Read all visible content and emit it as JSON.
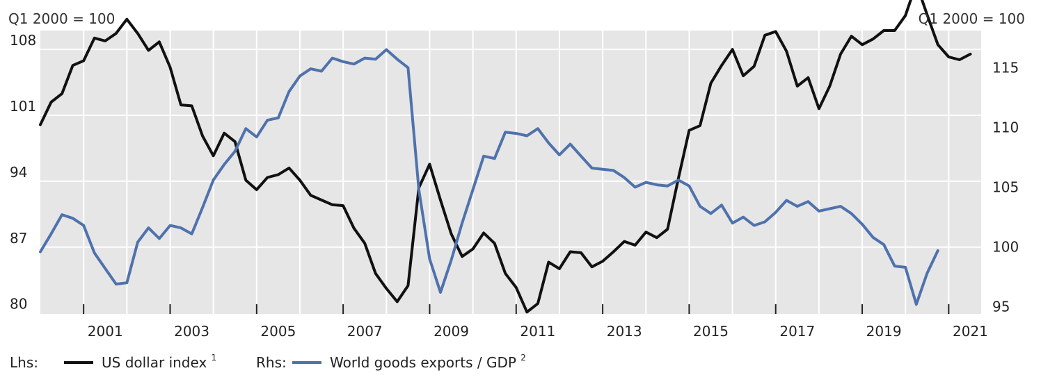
{
  "chart_data": {
    "type": "line",
    "left_unit": "Q1 2000 = 100",
    "right_unit": "Q1 2000 = 100",
    "x_tick_labels": [
      "2001",
      "2003",
      "2005",
      "2007",
      "2009",
      "2011",
      "2013",
      "2015",
      "2017",
      "2019",
      "2021"
    ],
    "xlim": [
      2000.0,
      2021.75
    ],
    "left_axis": {
      "ticks": [
        80,
        87,
        94,
        101,
        108
      ],
      "ylim": [
        79.9,
        110
      ]
    },
    "right_axis": {
      "ticks": [
        95,
        100,
        105,
        110,
        115
      ],
      "ylim": [
        94.4,
        118.1
      ]
    },
    "grid": true,
    "plot_background": "#e6e6e6",
    "legend": {
      "placement": "bottom",
      "items": [
        {
          "prefix": "Lhs:",
          "label": "US dollar index",
          "sup": "1",
          "color": "#111111"
        },
        {
          "prefix": "Rhs:",
          "label": "World goods exports / GDP",
          "sup": "2",
          "color": "#4f72ad"
        }
      ]
    },
    "series": [
      {
        "name": "US dollar index",
        "axis": "left",
        "color": "#111111",
        "x": [
          2000.0,
          2000.25,
          2000.5,
          2000.75,
          2001.0,
          2001.25,
          2001.5,
          2001.75,
          2002.0,
          2002.25,
          2002.5,
          2002.75,
          2003.0,
          2003.25,
          2003.5,
          2003.75,
          2004.0,
          2004.25,
          2004.5,
          2004.75,
          2005.0,
          2005.25,
          2005.5,
          2005.75,
          2006.0,
          2006.25,
          2006.5,
          2006.75,
          2007.0,
          2007.25,
          2007.5,
          2007.75,
          2008.0,
          2008.25,
          2008.5,
          2008.75,
          2009.0,
          2009.25,
          2009.5,
          2009.75,
          2010.0,
          2010.25,
          2010.5,
          2010.75,
          2011.0,
          2011.25,
          2011.5,
          2011.75,
          2012.0,
          2012.25,
          2012.5,
          2012.75,
          2013.0,
          2013.25,
          2013.5,
          2013.75,
          2014.0,
          2014.25,
          2014.5,
          2014.75,
          2015.0,
          2015.25,
          2015.5,
          2015.75,
          2016.0,
          2016.25,
          2016.5,
          2016.75,
          2017.0,
          2017.25,
          2017.5,
          2017.75,
          2018.0,
          2018.25,
          2018.5,
          2018.75,
          2019.0,
          2019.25,
          2019.5,
          2019.75,
          2020.0,
          2020.25,
          2020.5,
          2020.75,
          2021.0,
          2021.25,
          2021.5
        ],
        "y": [
          100,
          102.4,
          103.3,
          106.3,
          106.8,
          109.2,
          108.9,
          109.7,
          111.2,
          109.7,
          107.9,
          108.8,
          106.1,
          102.1,
          102.0,
          98.8,
          96.7,
          99.1,
          98.2,
          94.1,
          93.1,
          94.4,
          94.7,
          95.4,
          94.1,
          92.5,
          92.0,
          91.5,
          91.4,
          89.0,
          87.4,
          84.2,
          82.6,
          81.2,
          82.9,
          93.3,
          95.8,
          92.0,
          88.4,
          86.0,
          86.8,
          88.5,
          87.4,
          84.2,
          82.7,
          80.1,
          81.0,
          85.4,
          84.7,
          86.5,
          86.4,
          84.9,
          85.5,
          86.5,
          87.6,
          87.2,
          88.6,
          88.0,
          88.9,
          94.3,
          99.4,
          99.9,
          104.4,
          106.3,
          108.0,
          105.2,
          106.2,
          109.5,
          109.9,
          107.8,
          104.1,
          105.0,
          101.7,
          104.1,
          107.5,
          109.4,
          108.5,
          109.1,
          110.0,
          110.0,
          111.6,
          115.0,
          111.7,
          108.5,
          107.2,
          106.9,
          107.5
        ]
      },
      {
        "name": "World goods exports / GDP",
        "axis": "right",
        "color": "#4f72ad",
        "x": [
          2000.0,
          2000.25,
          2000.5,
          2000.75,
          2001.0,
          2001.25,
          2001.5,
          2001.75,
          2002.0,
          2002.25,
          2002.5,
          2002.75,
          2003.0,
          2003.25,
          2003.5,
          2003.75,
          2004.0,
          2004.25,
          2004.5,
          2004.75,
          2005.0,
          2005.25,
          2005.5,
          2005.75,
          2006.0,
          2006.25,
          2006.5,
          2006.75,
          2007.0,
          2007.25,
          2007.5,
          2007.75,
          2008.0,
          2008.25,
          2008.5,
          2008.75,
          2009.0,
          2009.25,
          2009.5,
          2009.75,
          2010.0,
          2010.25,
          2010.5,
          2010.75,
          2011.0,
          2011.25,
          2011.5,
          2011.75,
          2012.0,
          2012.25,
          2012.5,
          2012.75,
          2013.0,
          2013.25,
          2013.5,
          2013.75,
          2014.0,
          2014.25,
          2014.5,
          2014.75,
          2015.0,
          2015.25,
          2015.5,
          2015.75,
          2016.0,
          2016.25,
          2016.5,
          2016.75,
          2017.0,
          2017.25,
          2017.5,
          2017.75,
          2018.0,
          2018.25,
          2018.5,
          2018.75,
          2019.0,
          2019.25,
          2019.5,
          2019.75,
          2020.0,
          2020.25,
          2020.5,
          2020.75
        ],
        "y": [
          99.6,
          101.1,
          102.7,
          102.4,
          101.8,
          99.5,
          98.2,
          96.9,
          97.0,
          100.4,
          101.6,
          100.7,
          101.8,
          101.6,
          101.1,
          103.3,
          105.6,
          106.9,
          108.0,
          109.9,
          109.2,
          110.6,
          110.8,
          113.0,
          114.3,
          114.9,
          114.7,
          115.8,
          115.5,
          115.3,
          115.8,
          115.7,
          116.5,
          115.7,
          115.0,
          104.8,
          99.0,
          96.2,
          98.9,
          102.0,
          104.8,
          107.6,
          107.4,
          109.6,
          109.5,
          109.3,
          109.9,
          108.7,
          107.7,
          108.6,
          107.6,
          106.6,
          106.5,
          106.4,
          105.8,
          105.0,
          105.4,
          105.2,
          105.1,
          105.6,
          105.1,
          103.4,
          102.8,
          103.5,
          102.0,
          102.5,
          101.8,
          102.1,
          102.9,
          103.9,
          103.4,
          103.8,
          103.0,
          103.2,
          103.4,
          102.8,
          101.9,
          100.8,
          100.2,
          98.4,
          98.3,
          95.2,
          97.8,
          99.7
        ]
      }
    ]
  }
}
